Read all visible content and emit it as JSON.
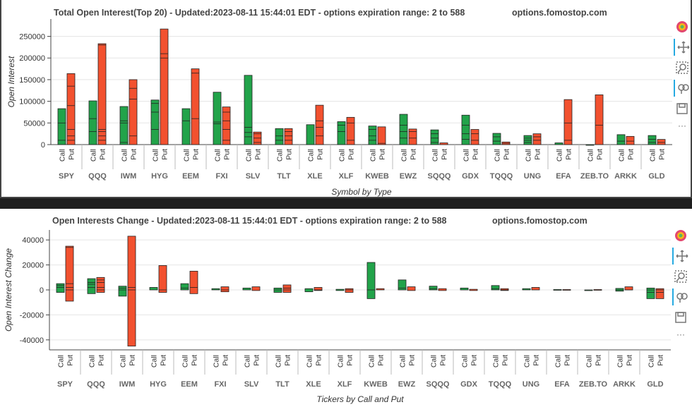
{
  "colors": {
    "call": "#22a34a",
    "put": "#f2512f",
    "axis": "#444444",
    "grid": "#e5e5e5",
    "title": "#444444"
  },
  "type_labels": {
    "call": "Call",
    "put": "Put"
  },
  "chart_data": [
    {
      "type": "bar",
      "title": "Total Open Interest(Top 20) - Updated:2023-08-11 15:44:01 EDT - options expiration range: 2 to 588",
      "site": "options.fomostop.com",
      "xlabel": "Symbol by Type",
      "ylabel": "Open Interest",
      "ylim": [
        0,
        290000
      ],
      "yticks": [
        0,
        50000,
        100000,
        150000,
        200000,
        250000
      ],
      "categories": [
        "SPY",
        "QQQ",
        "IWM",
        "HYG",
        "EEM",
        "FXI",
        "SLV",
        "TLT",
        "XLE",
        "XLF",
        "KWEB",
        "EWZ",
        "SQQQ",
        "GDX",
        "TQQQ",
        "UNG",
        "EFA",
        "ZEB.TO",
        "ARKK",
        "GLD"
      ],
      "series": [
        {
          "name": "Call",
          "values": [
            83000,
            101000,
            88000,
            103000,
            83000,
            121000,
            160000,
            37000,
            46000,
            53000,
            43000,
            70000,
            34000,
            68000,
            26000,
            21000,
            4000,
            0,
            23000,
            21000
          ]
        },
        {
          "name": "Put",
          "values": [
            164000,
            233000,
            150000,
            267000,
            175000,
            87000,
            29000,
            37000,
            91000,
            63000,
            41000,
            36000,
            4000,
            35000,
            6000,
            25000,
            104000,
            115000,
            19000,
            12000
          ]
        }
      ],
      "segments": {
        "call": [
          [
            10000,
            50000
          ],
          [
            30000,
            60000
          ],
          [
            5000,
            50000,
            55000
          ],
          [
            35000,
            75000,
            95000
          ],
          [
            55000
          ],
          [
            48000,
            52000
          ],
          [
            18000,
            28000,
            40000
          ],
          [
            10000,
            20000
          ],
          [],
          [
            30000,
            45000
          ],
          [
            10000,
            20000,
            35000
          ],
          [
            15000,
            30000,
            45000
          ],
          [
            5000,
            15000,
            25000
          ],
          [
            12000,
            25000,
            45000
          ],
          [
            8000,
            18000
          ],
          [
            5000,
            10000,
            15000
          ],
          [],
          [],
          [
            8000
          ],
          [
            5000,
            12000
          ]
        ],
        "put": [
          [
            10000,
            20000,
            35000,
            90000,
            135000
          ],
          [
            10000,
            20000,
            30000,
            35000,
            230000
          ],
          [
            20000,
            105000,
            130000
          ],
          [
            200000,
            210000
          ],
          [
            60000,
            165000
          ],
          [
            10000,
            35000,
            55000,
            75000
          ],
          [
            5000,
            15000,
            25000
          ],
          [
            10000,
            20000,
            30000
          ],
          [
            20000,
            40000,
            55000
          ],
          [
            10000,
            50000
          ],
          [
            3000
          ],
          [
            15000,
            30000
          ],
          [],
          [
            10000,
            25000
          ],
          [
            3000
          ],
          [
            10000,
            18000
          ],
          [
            10000,
            50000
          ],
          [
            45000
          ],
          [
            8000
          ],
          [
            5000
          ]
        ]
      }
    },
    {
      "type": "bar",
      "title": "Open Interests Change - Updated:2023-08-11 15:44:01 EDT - options expiration range: 2 to 588",
      "site": "options.fomostop.com",
      "xlabel": "Tickers by Call and Put",
      "ylabel": "Open Interest Change",
      "ylim": [
        -48000,
        48000
      ],
      "yticks": [
        -40000,
        -20000,
        0,
        20000,
        40000
      ],
      "categories": [
        "SPY",
        "QQQ",
        "IWM",
        "HYG",
        "EEM",
        "FXI",
        "SLV",
        "TLT",
        "XLE",
        "XLF",
        "KWEB",
        "EWZ",
        "SQQQ",
        "GDX",
        "TQQQ",
        "UNG",
        "EFA",
        "ZEB.TO",
        "ARKK",
        "GLD"
      ],
      "series": [
        {
          "name": "Call",
          "ranges": [
            [
              -2000,
              5000
            ],
            [
              -3000,
              9000
            ],
            [
              -5000,
              3000
            ],
            [
              0,
              2000
            ],
            [
              0,
              5000
            ],
            [
              0,
              1000
            ],
            [
              0,
              1500
            ],
            [
              -2000,
              1500
            ],
            [
              -1500,
              1000
            ],
            [
              -500,
              500
            ],
            [
              -7000,
              22000
            ],
            [
              0,
              8000
            ],
            [
              0,
              3000
            ],
            [
              0,
              1500
            ],
            [
              0,
              3500
            ],
            [
              0,
              1000
            ],
            [
              0,
              300
            ],
            [
              0,
              0
            ],
            [
              -1000,
              1200
            ],
            [
              -7000,
              1500
            ]
          ]
        },
        {
          "name": "Put",
          "ranges": [
            [
              -9000,
              35000
            ],
            [
              -2000,
              10000
            ],
            [
              -45000,
              43000
            ],
            [
              -2000,
              19500
            ],
            [
              -3000,
              15000
            ],
            [
              -1500,
              2500
            ],
            [
              -500,
              2500
            ],
            [
              -2000,
              4000
            ],
            [
              -500,
              2000
            ],
            [
              -2000,
              1000
            ],
            [
              0,
              1000
            ],
            [
              -500,
              2500
            ],
            [
              -500,
              1000
            ],
            [
              -500,
              500
            ],
            [
              -500,
              1000
            ],
            [
              0,
              2000
            ],
            [
              0,
              300
            ],
            [
              0,
              300
            ],
            [
              0,
              2500
            ],
            [
              -7000,
              1000
            ]
          ]
        }
      ],
      "segments": {
        "call": [
          [
            2000,
            3500
          ],
          [
            2000,
            4500,
            6000
          ],
          [
            0,
            1500
          ],
          [],
          [
            1500
          ],
          [],
          [],
          [
            0
          ],
          [],
          [],
          [
            0
          ],
          [
            1500
          ],
          [
            1000
          ],
          [],
          [
            1000
          ],
          [],
          [],
          [],
          [
            0
          ],
          [
            -2000,
            0
          ]
        ],
        "put": [
          [
            0,
            2000,
            5000,
            34000
          ],
          [
            0,
            2000,
            6000,
            8000
          ],
          [
            0,
            2000
          ],
          [
            0
          ],
          [
            2000
          ],
          [
            0
          ],
          [],
          [
            0,
            1500
          ],
          [
            0
          ],
          [
            0
          ],
          [],
          [],
          [],
          [],
          [
            0
          ],
          [],
          [],
          [],
          [
            0
          ],
          [
            0,
            -2000
          ]
        ]
      }
    }
  ]
}
